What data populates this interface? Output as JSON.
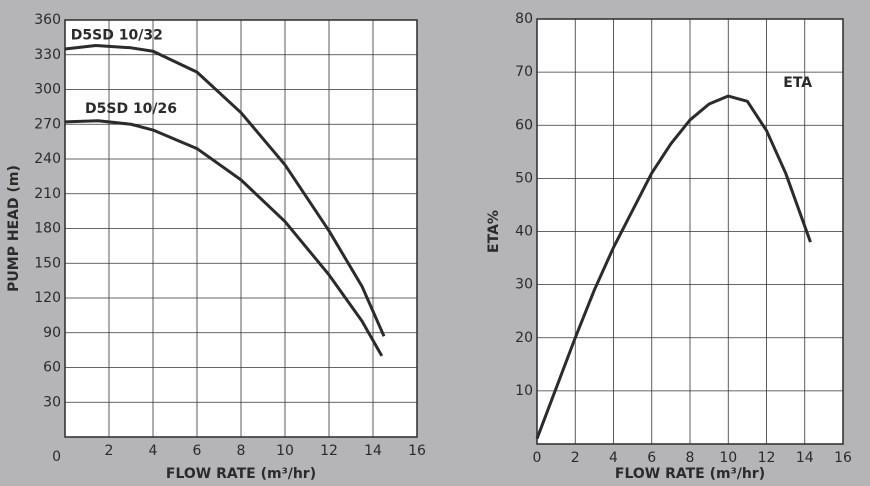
{
  "chart_data": [
    {
      "type": "line",
      "ylabel": "PUMP HEAD (m)",
      "xlabel": "FLOW RATE (m³/hr)",
      "xlim": [
        0,
        16
      ],
      "xticks": [
        2,
        4,
        6,
        8,
        10,
        12,
        14,
        16
      ],
      "ylim": [
        0,
        360
      ],
      "yticks": [
        0,
        30,
        60,
        90,
        120,
        150,
        180,
        210,
        240,
        270,
        300,
        330,
        360
      ],
      "grid": true,
      "series": [
        {
          "name": "D5SD 10/32",
          "color": "#2b2b2b",
          "x": [
            0,
            1.4,
            3,
            4,
            6,
            8,
            10,
            12,
            13.5,
            14.5
          ],
          "values": [
            335,
            338,
            336,
            333,
            315,
            280,
            235,
            178,
            130,
            87
          ]
        },
        {
          "name": "D5SD 10/26",
          "color": "#2b2b2b",
          "x": [
            0,
            1.5,
            3,
            4,
            6,
            8,
            10,
            12,
            13.5,
            14.4
          ],
          "values": [
            272,
            273,
            270,
            265,
            249,
            222,
            186,
            140,
            100,
            70
          ]
        }
      ]
    },
    {
      "type": "line",
      "ylabel": "ETA%",
      "xlabel": "FLOW RATE (m³/hr)",
      "xlim": [
        0,
        16
      ],
      "xticks": [
        0,
        2,
        4,
        6,
        8,
        10,
        12,
        14,
        16
      ],
      "ylim": [
        0,
        80
      ],
      "yticks": [
        10,
        20,
        30,
        40,
        50,
        60,
        70,
        80
      ],
      "grid": true,
      "series": [
        {
          "name": "ETA",
          "color": "#2b2b2b",
          "x": [
            0,
            1,
            2,
            3,
            4,
            5,
            6,
            7,
            8,
            9,
            10,
            11,
            12,
            13,
            14.3
          ],
          "values": [
            1,
            10.5,
            20,
            29,
            37,
            44,
            51,
            56.5,
            61,
            64,
            65.5,
            64.5,
            59,
            51,
            38
          ]
        }
      ]
    }
  ]
}
